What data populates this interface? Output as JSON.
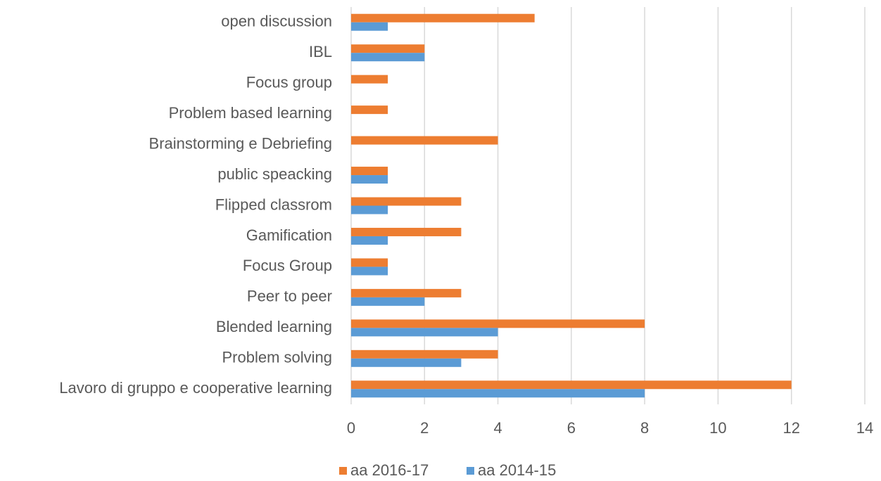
{
  "chart_data": {
    "type": "hbar",
    "categories": [
      "open discussion",
      "IBL",
      "Focus group",
      "Problem based learning",
      "Brainstorming e Debriefing",
      "public speacking",
      "Flipped classrom",
      "Gamification",
      "Focus Group",
      "Peer to peer",
      "Blended learning",
      "Problem solving",
      "Lavoro di gruppo e cooperative learning"
    ],
    "series": [
      {
        "name": "aa 2016-17",
        "color": "#ed7d31",
        "values": [
          5,
          2,
          1,
          1,
          4,
          1,
          3,
          3,
          1,
          3,
          8,
          4,
          12
        ]
      },
      {
        "name": "aa 2014-15",
        "color": "#5b9bd5",
        "values": [
          1,
          2,
          0,
          0,
          0,
          1,
          1,
          1,
          1,
          2,
          4,
          3,
          8
        ]
      }
    ],
    "xlim": [
      0,
      14
    ],
    "xticks": [
      0,
      2,
      4,
      6,
      8,
      10,
      12,
      14
    ],
    "grid": true,
    "legend": "bottom"
  }
}
